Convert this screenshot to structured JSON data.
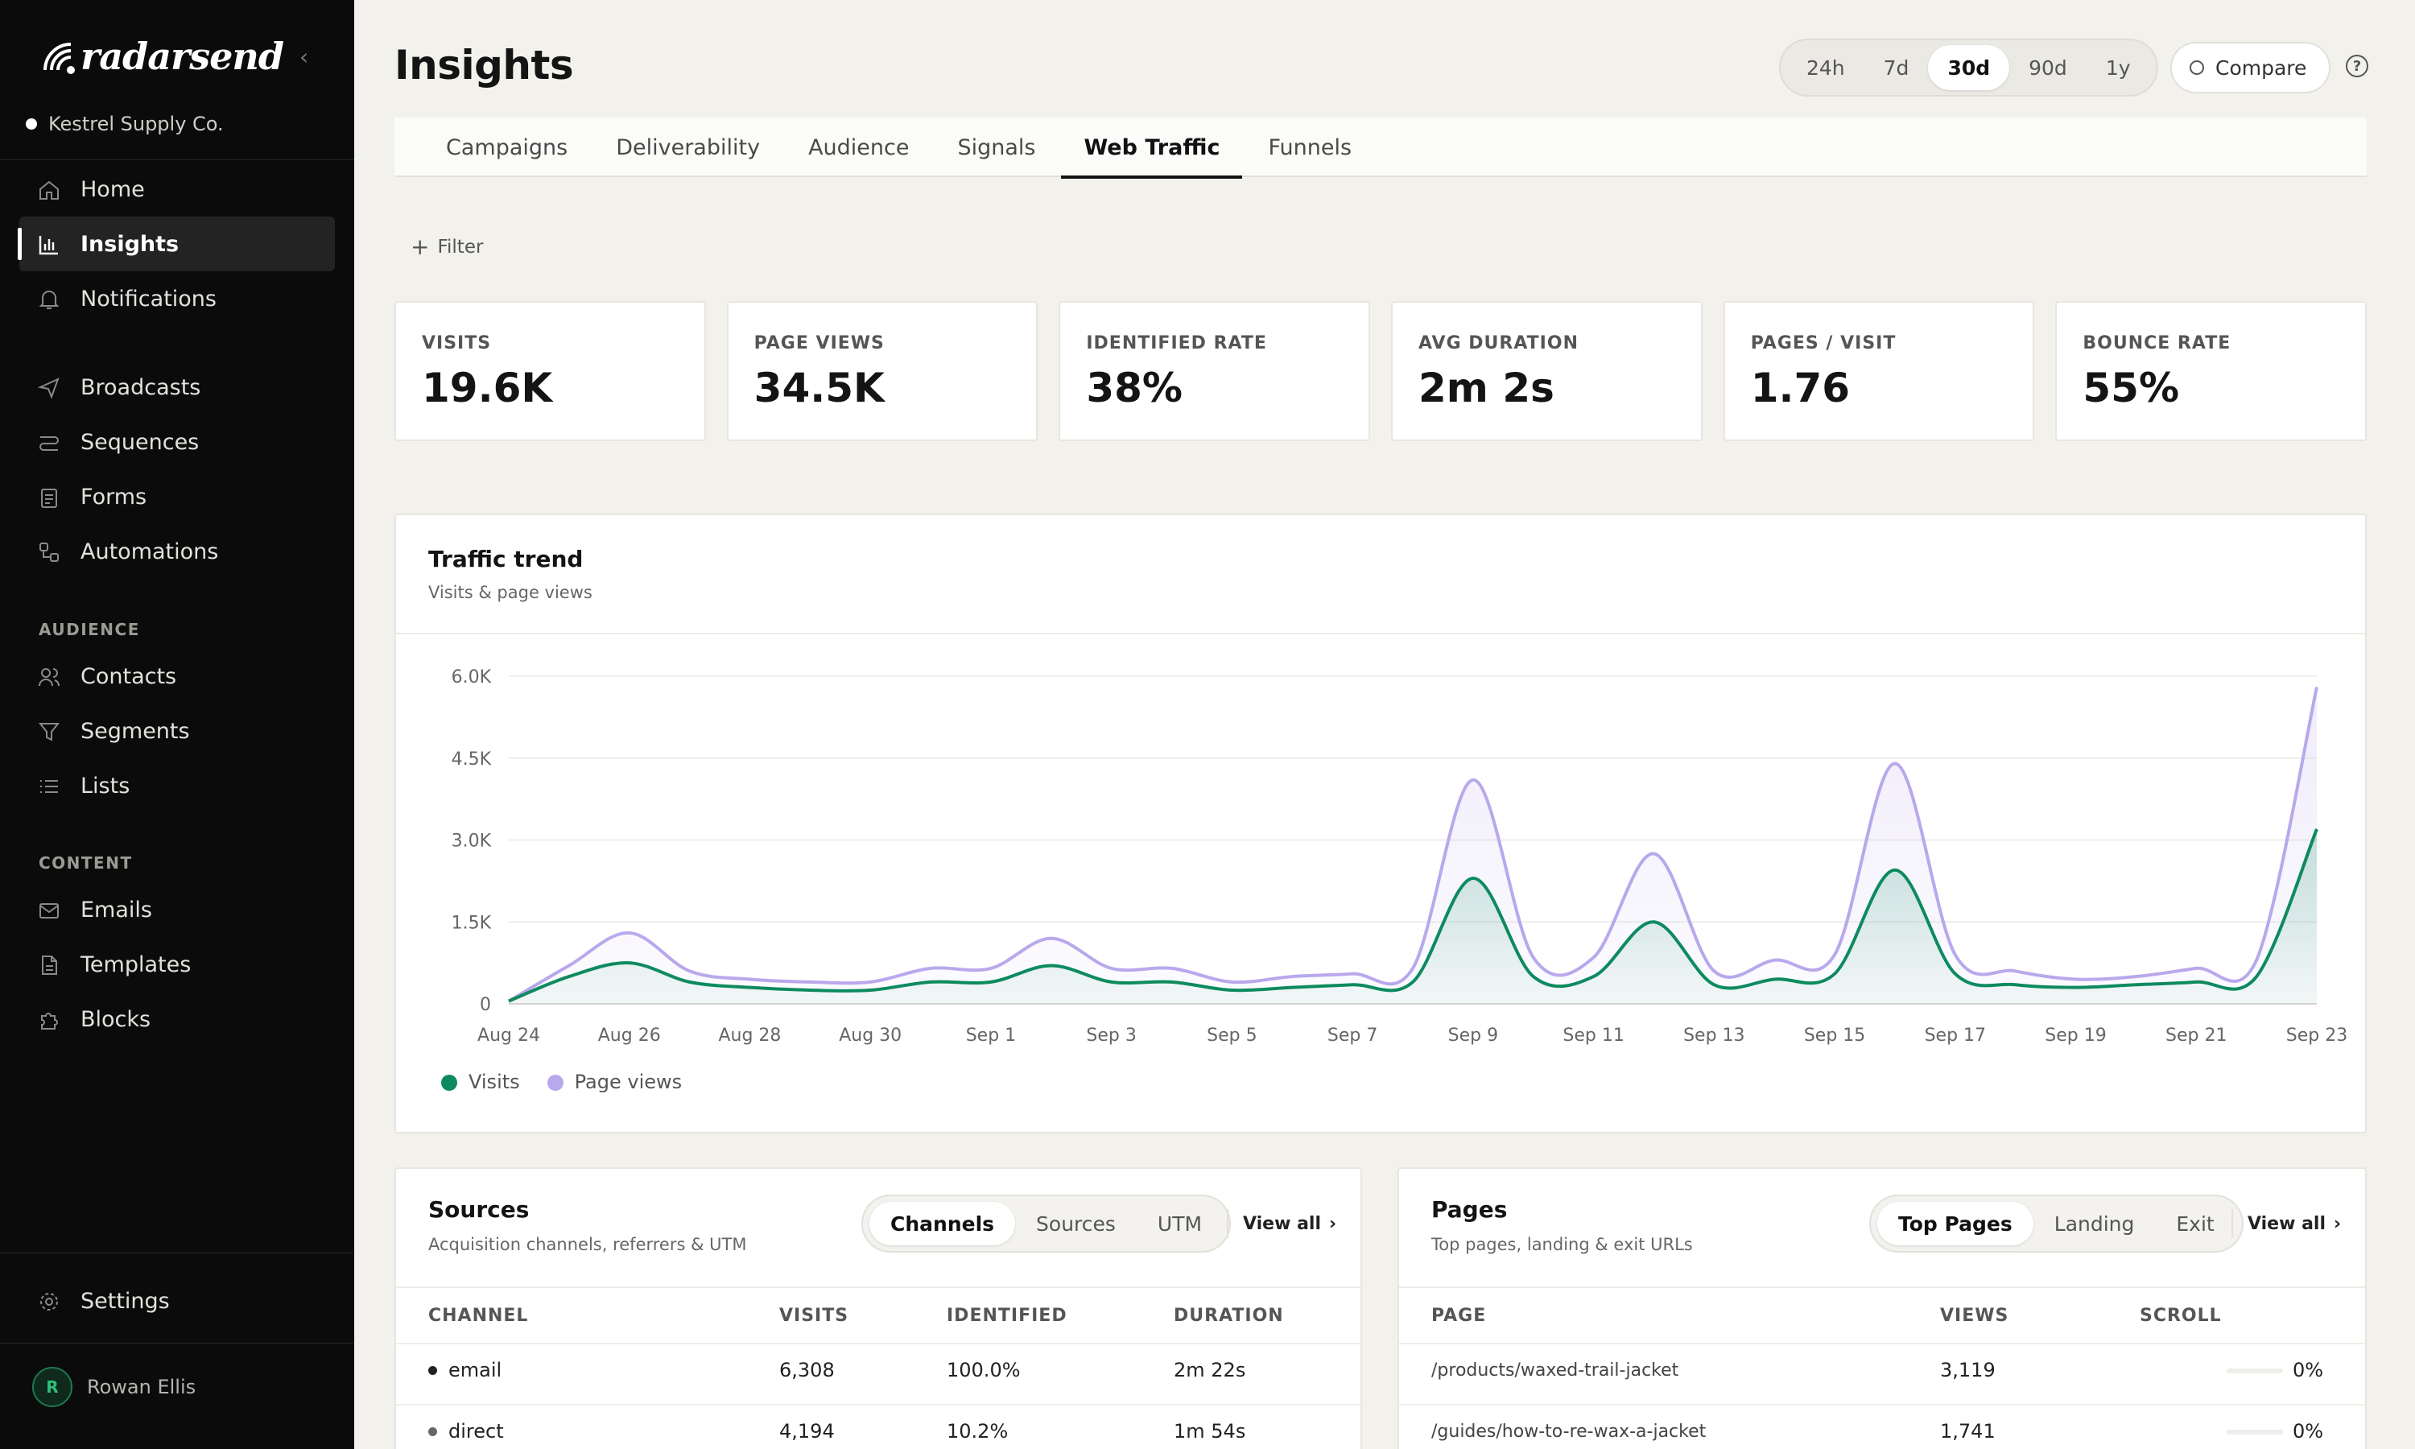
{
  "brand": {
    "name": "radarsend",
    "org": "Kestrel Supply Co."
  },
  "sidebar": {
    "primary": [
      {
        "label": "Home",
        "icon": "home-icon"
      },
      {
        "label": "Insights",
        "icon": "bar-chart-icon",
        "active": true
      },
      {
        "label": "Notifications",
        "icon": "bell-icon"
      }
    ],
    "messaging": [
      {
        "label": "Broadcasts",
        "icon": "send-icon"
      },
      {
        "label": "Sequences",
        "icon": "sequence-icon"
      },
      {
        "label": "Forms",
        "icon": "clipboard-icon"
      },
      {
        "label": "Automations",
        "icon": "workflow-icon"
      }
    ],
    "audience_label": "AUDIENCE",
    "audience": [
      {
        "label": "Contacts",
        "icon": "users-icon"
      },
      {
        "label": "Segments",
        "icon": "funnel-icon"
      },
      {
        "label": "Lists",
        "icon": "list-icon"
      }
    ],
    "content_label": "CONTENT",
    "content": [
      {
        "label": "Emails",
        "icon": "mail-icon"
      },
      {
        "label": "Templates",
        "icon": "file-icon"
      },
      {
        "label": "Blocks",
        "icon": "puzzle-icon"
      }
    ],
    "settings": "Settings",
    "user": {
      "initial": "R",
      "name": "Rowan Ellis"
    }
  },
  "header": {
    "title": "Insights",
    "ranges": [
      "24h",
      "7d",
      "30d",
      "90d",
      "1y"
    ],
    "selected_range": "30d",
    "compare": "Compare"
  },
  "tabs": [
    "Campaigns",
    "Deliverability",
    "Audience",
    "Signals",
    "Web Traffic",
    "Funnels"
  ],
  "selected_tab": "Web Traffic",
  "filter": "Filter",
  "kpis": [
    {
      "label": "VISITS",
      "value": "19.6K"
    },
    {
      "label": "PAGE VIEWS",
      "value": "34.5K"
    },
    {
      "label": "IDENTIFIED RATE",
      "value": "38%"
    },
    {
      "label": "AVG DURATION",
      "value": "2m 2s"
    },
    {
      "label": "PAGES / VISIT",
      "value": "1.76"
    },
    {
      "label": "BOUNCE RATE",
      "value": "55%"
    }
  ],
  "trend": {
    "title": "Traffic trend",
    "subtitle": "Visits & page views"
  },
  "chart_data": {
    "type": "area",
    "x": [
      "Aug 24",
      "Aug 25",
      "Aug 26",
      "Aug 27",
      "Aug 28",
      "Aug 29",
      "Aug 30",
      "Aug 31",
      "Sep 1",
      "Sep 2",
      "Sep 3",
      "Sep 4",
      "Sep 5",
      "Sep 6",
      "Sep 7",
      "Sep 8",
      "Sep 9",
      "Sep 10",
      "Sep 11",
      "Sep 12",
      "Sep 13",
      "Sep 14",
      "Sep 15",
      "Sep 16",
      "Sep 17",
      "Sep 18",
      "Sep 19",
      "Sep 20",
      "Sep 21",
      "Sep 22",
      "Sep 23"
    ],
    "x_tick_labels": [
      "Aug 24",
      "Aug 26",
      "Aug 28",
      "Aug 30",
      "Sep 1",
      "Sep 3",
      "Sep 5",
      "Sep 7",
      "Sep 9",
      "Sep 11",
      "Sep 13",
      "Sep 15",
      "Sep 17",
      "Sep 19",
      "Sep 21",
      "Sep 23"
    ],
    "y_tick_labels": [
      "0",
      "1.5K",
      "3.0K",
      "4.5K",
      "6.0K"
    ],
    "ylim": [
      0,
      6000
    ],
    "series": [
      {
        "name": "Visits",
        "color": "#0e8a5f",
        "values": [
          50,
          500,
          750,
          400,
          300,
          250,
          250,
          400,
          400,
          700,
          400,
          400,
          250,
          300,
          350,
          400,
          2300,
          500,
          500,
          1500,
          350,
          450,
          550,
          2450,
          550,
          350,
          300,
          350,
          400,
          500,
          3200
        ]
      },
      {
        "name": "Page views",
        "color": "#b9a8ec",
        "values": [
          50,
          700,
          1300,
          600,
          450,
          400,
          400,
          650,
          650,
          1200,
          650,
          650,
          400,
          500,
          550,
          650,
          4100,
          850,
          850,
          2750,
          600,
          800,
          900,
          4400,
          900,
          600,
          450,
          500,
          650,
          800,
          5800
        ]
      }
    ],
    "grid": true,
    "legend": "bottom-left"
  },
  "sources": {
    "title": "Sources",
    "subtitle": "Acquisition channels, referrers & UTM",
    "tabs": [
      "Channels",
      "Sources",
      "UTM"
    ],
    "selected": "Channels",
    "view_all": "View all",
    "columns": [
      "CHANNEL",
      "VISITS",
      "IDENTIFIED",
      "DURATION"
    ],
    "rows": [
      {
        "name": "email",
        "visits": "6,308",
        "identified": "100.0%",
        "duration": "2m 22s"
      },
      {
        "name": "direct",
        "visits": "4,194",
        "identified": "10.2%",
        "duration": "1m 54s"
      }
    ]
  },
  "pages": {
    "title": "Pages",
    "subtitle": "Top pages, landing & exit URLs",
    "tabs": [
      "Top Pages",
      "Landing",
      "Exit"
    ],
    "selected": "Top Pages",
    "view_all": "View all",
    "columns": [
      "PAGE",
      "VIEWS",
      "SCROLL"
    ],
    "rows": [
      {
        "page": "/products/waxed-trail-jacket",
        "views": "3,119",
        "scroll": "0%"
      },
      {
        "page": "/guides/how-to-re-wax-a-jacket",
        "views": "1,741",
        "scroll": "0%"
      }
    ]
  }
}
